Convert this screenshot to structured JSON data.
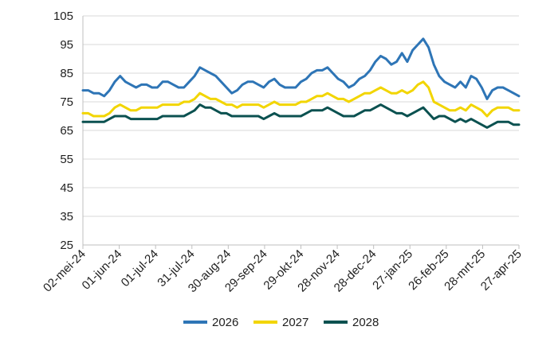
{
  "chart_data": {
    "type": "line",
    "title": "",
    "xlabel": "",
    "ylabel": "",
    "ylim": [
      25,
      105
    ],
    "y_ticks": [
      25,
      35,
      45,
      55,
      65,
      75,
      85,
      95,
      105
    ],
    "x_tick_labels": [
      "02-mei-24",
      "01-jun-24",
      "01-jul-24",
      "31-jul-24",
      "30-aug-24",
      "29-sep-24",
      "29-okt-24",
      "28-nov-24",
      "28-dec-24",
      "27-jan-25",
      "26-feb-25",
      "28-mrt-25",
      "27-apr-25"
    ],
    "grid": "horizontal",
    "legend_position": "bottom",
    "series": [
      {
        "name": "2026",
        "color": "#2E75B6",
        "values": [
          79,
          79,
          78,
          78,
          77,
          79,
          82,
          84,
          82,
          81,
          80,
          81,
          81,
          80,
          80,
          82,
          82,
          81,
          80,
          80,
          82,
          84,
          87,
          86,
          85,
          84,
          82,
          80,
          78,
          79,
          81,
          82,
          82,
          81,
          80,
          82,
          83,
          81,
          80,
          80,
          80,
          82,
          83,
          85,
          86,
          86,
          87,
          85,
          83,
          82,
          80,
          81,
          83,
          84,
          86,
          89,
          91,
          90,
          88,
          89,
          92,
          89,
          93,
          95,
          97,
          94,
          88,
          84,
          82,
          81,
          80,
          82,
          80,
          84,
          83,
          80,
          76,
          79,
          80,
          80,
          79,
          78,
          77
        ]
      },
      {
        "name": "2027",
        "color": "#F2D500",
        "values": [
          71,
          71,
          70,
          70,
          70,
          71,
          73,
          74,
          73,
          72,
          72,
          73,
          73,
          73,
          73,
          74,
          74,
          74,
          74,
          75,
          75,
          76,
          78,
          77,
          76,
          76,
          75,
          74,
          74,
          73,
          74,
          74,
          74,
          74,
          73,
          74,
          75,
          74,
          74,
          74,
          74,
          75,
          75,
          76,
          77,
          77,
          78,
          77,
          76,
          76,
          75,
          76,
          77,
          78,
          78,
          79,
          80,
          79,
          78,
          78,
          79,
          78,
          79,
          81,
          82,
          80,
          75,
          74,
          73,
          72,
          72,
          73,
          72,
          74,
          73,
          72,
          70,
          72,
          73,
          73,
          73,
          72,
          72
        ]
      },
      {
        "name": "2028",
        "color": "#0B5150",
        "values": [
          68,
          68,
          68,
          68,
          68,
          69,
          70,
          70,
          70,
          69,
          69,
          69,
          69,
          69,
          69,
          70,
          70,
          70,
          70,
          70,
          71,
          72,
          74,
          73,
          73,
          72,
          71,
          71,
          70,
          70,
          70,
          70,
          70,
          70,
          69,
          70,
          71,
          70,
          70,
          70,
          70,
          70,
          71,
          72,
          72,
          72,
          73,
          72,
          71,
          70,
          70,
          70,
          71,
          72,
          72,
          73,
          74,
          73,
          72,
          71,
          71,
          70,
          71,
          72,
          73,
          71,
          69,
          70,
          70,
          69,
          68,
          69,
          68,
          69,
          68,
          67,
          66,
          67,
          68,
          68,
          68,
          67,
          67
        ]
      }
    ]
  }
}
